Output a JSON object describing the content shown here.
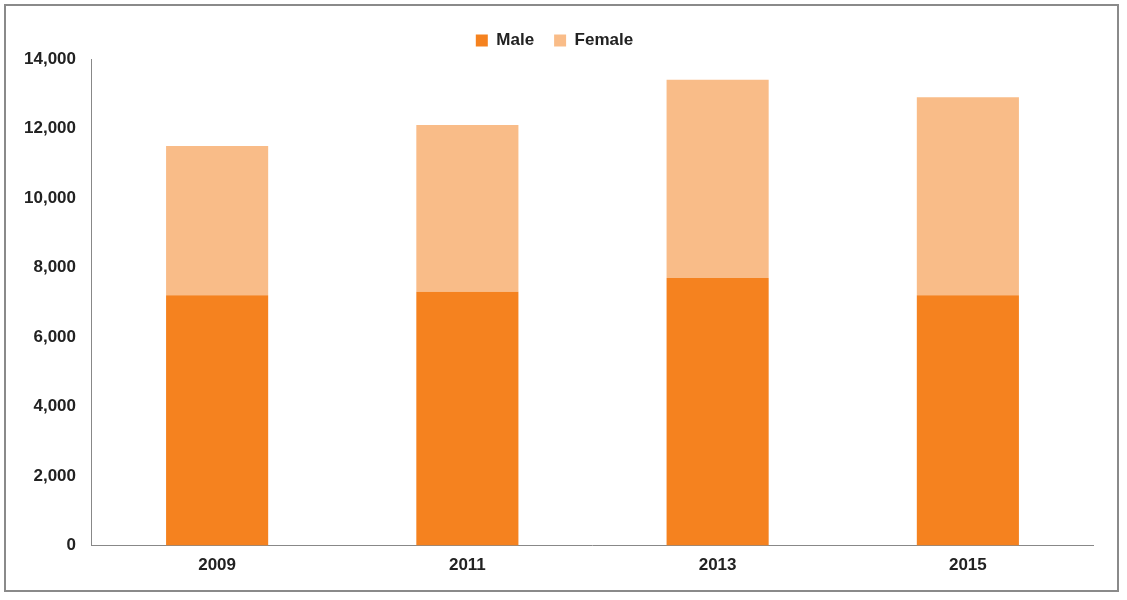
{
  "chart_data": {
    "type": "bar",
    "stacked": true,
    "categories": [
      "2009",
      "2011",
      "2013",
      "2015"
    ],
    "series": [
      {
        "name": "Male",
        "color": "#f5821f",
        "values": [
          7200,
          7300,
          7700,
          7200
        ]
      },
      {
        "name": "Female",
        "color": "#f9bc88",
        "values": [
          4300,
          4800,
          5700,
          5700
        ]
      }
    ],
    "ylim": [
      0,
      14000
    ],
    "yticks": [
      0,
      {
        "value": 2000,
        "label": "2,000"
      },
      {
        "value": 4000,
        "label": "4,000"
      },
      {
        "value": 6000,
        "label": "6,000"
      },
      {
        "value": 8000,
        "label": "8,000"
      },
      {
        "value": 10000,
        "label": "10,000"
      },
      {
        "value": 12000,
        "label": "12,000"
      },
      {
        "value": 14000,
        "label": "14,000"
      }
    ],
    "grid": false,
    "legend": "top"
  }
}
